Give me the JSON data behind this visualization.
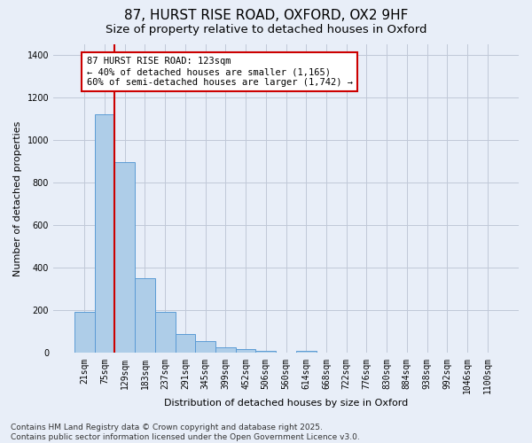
{
  "title": "87, HURST RISE ROAD, OXFORD, OX2 9HF",
  "subtitle": "Size of property relative to detached houses in Oxford",
  "xlabel": "Distribution of detached houses by size in Oxford",
  "ylabel": "Number of detached properties",
  "categories": [
    "21sqm",
    "75sqm",
    "129sqm",
    "183sqm",
    "237sqm",
    "291sqm",
    "345sqm",
    "399sqm",
    "452sqm",
    "506sqm",
    "560sqm",
    "614sqm",
    "668sqm",
    "722sqm",
    "776sqm",
    "830sqm",
    "884sqm",
    "938sqm",
    "992sqm",
    "1046sqm",
    "1100sqm"
  ],
  "values": [
    195,
    1120,
    895,
    350,
    195,
    90,
    55,
    25,
    20,
    12,
    0,
    12,
    0,
    0,
    0,
    0,
    0,
    0,
    0,
    0,
    0
  ],
  "bar_color": "#aecde8",
  "bar_edge_color": "#5b9bd5",
  "grid_color": "#c0c8d8",
  "background_color": "#e8eef8",
  "vline_color": "#cc0000",
  "vline_x": 1.5,
  "annotation_text": "87 HURST RISE ROAD: 123sqm\n← 40% of detached houses are smaller (1,165)\n60% of semi-detached houses are larger (1,742) →",
  "annotation_box_color": "#ffffff",
  "annotation_box_edge_color": "#cc0000",
  "ylim": [
    0,
    1450
  ],
  "yticks": [
    0,
    200,
    400,
    600,
    800,
    1000,
    1200,
    1400
  ],
  "footer_text": "Contains HM Land Registry data © Crown copyright and database right 2025.\nContains public sector information licensed under the Open Government Licence v3.0.",
  "title_fontsize": 11,
  "subtitle_fontsize": 9.5,
  "axis_label_fontsize": 8,
  "tick_fontsize": 7,
  "annotation_fontsize": 7.5,
  "footer_fontsize": 6.5
}
